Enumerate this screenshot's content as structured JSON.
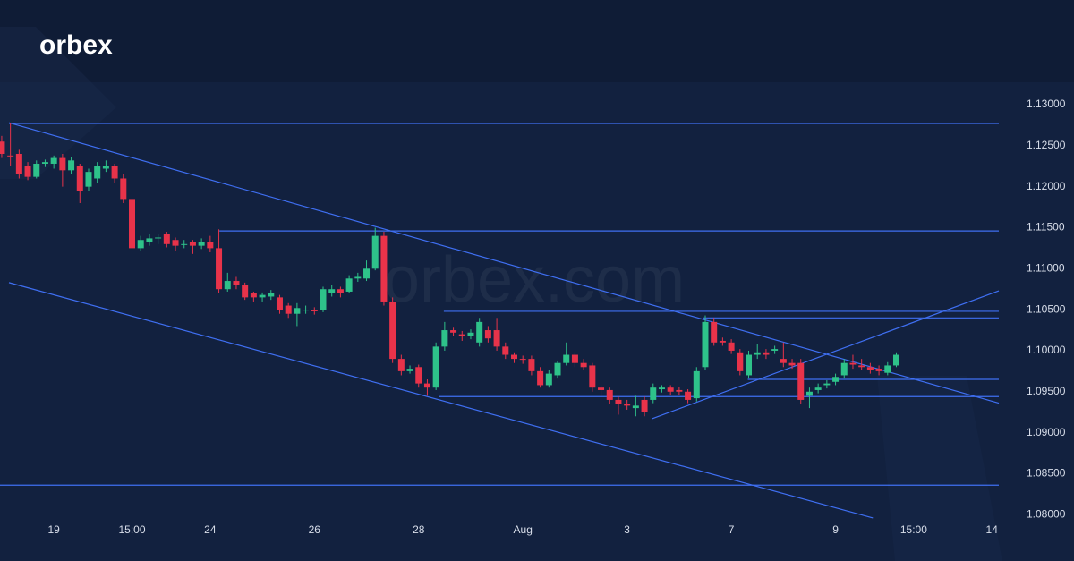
{
  "logo": "orbex",
  "watermark": "orbex.com",
  "chart_data": {
    "type": "candlestick",
    "up_color": "#2ec28a",
    "down_color": "#e8334a",
    "line_color": "#3f6ff2",
    "grid": false,
    "xlim": [
      -0.2,
      114.8
    ],
    "ylim": [
      1.0773,
      1.1324
    ],
    "xticks": [
      {
        "value": 6,
        "label": "19"
      },
      {
        "value": 15,
        "label": "15:00"
      },
      {
        "value": 24,
        "label": "24"
      },
      {
        "value": 36,
        "label": "26"
      },
      {
        "value": 48,
        "label": "28"
      },
      {
        "value": 60,
        "label": "Aug"
      },
      {
        "value": 72,
        "label": "3"
      },
      {
        "value": 84,
        "label": "7"
      },
      {
        "value": 96,
        "label": "9"
      },
      {
        "value": 105,
        "label": "15:00"
      },
      {
        "value": 114,
        "label": "14"
      }
    ],
    "yticks": [
      {
        "value": 1.13,
        "label": "1.13000"
      },
      {
        "value": 1.125,
        "label": "1.12500"
      },
      {
        "value": 1.12,
        "label": "1.12000"
      },
      {
        "value": 1.115,
        "label": "1.11500"
      },
      {
        "value": 1.11,
        "label": "1.11000"
      },
      {
        "value": 1.105,
        "label": "1.10500"
      },
      {
        "value": 1.1,
        "label": "1.10000"
      },
      {
        "value": 1.095,
        "label": "1.09500"
      },
      {
        "value": 1.09,
        "label": "1.09000"
      },
      {
        "value": 1.085,
        "label": "1.08500"
      },
      {
        "value": 1.08,
        "label": "1.08000"
      }
    ],
    "open": [
      1.1255,
      1.1238,
      1.124,
      1.1225,
      1.1212,
      1.1228,
      1.1228,
      1.1235,
      1.122,
      1.1225,
      1.12,
      1.121,
      1.1222,
      1.1225,
      1.121,
      1.1185,
      1.1125,
      1.1132,
      1.1137,
      1.1142,
      1.1135,
      1.113,
      1.1132,
      1.1128,
      1.1133,
      1.1125,
      1.1075,
      1.1085,
      1.108,
      1.107,
      1.1065,
      1.1066,
      1.1065,
      1.1055,
      1.1045,
      1.105,
      1.105,
      1.105,
      1.107,
      1.1075,
      1.1072,
      1.1088,
      1.1088,
      1.11,
      1.114,
      1.106,
      1.099,
      1.0975,
      1.098,
      1.096,
      1.0955,
      1.1005,
      1.1025,
      1.102,
      1.1018,
      1.101,
      1.1025,
      1.1025,
      1.1005,
      1.0995,
      1.099,
      1.099,
      1.0975,
      1.0958,
      1.097,
      1.0985,
      1.0995,
      1.0985,
      1.0982,
      1.0955,
      1.0952,
      1.094,
      1.0935,
      1.093,
      1.094,
      1.094,
      1.0953,
      1.0955,
      1.0952,
      1.095,
      1.0942,
      1.098,
      1.1035,
      1.1012,
      1.101,
      1.0998,
      1.097,
      1.0995,
      1.0998,
      1.1,
      1.099,
      1.0985,
      1.0985,
      1.0945,
      1.0952,
      1.0958,
      1.0962,
      1.097,
      1.0985,
      1.0982,
      1.098,
      1.0978,
      1.0973,
      1.0982
    ],
    "high": [
      1.1262,
      1.1278,
      1.1245,
      1.123,
      1.1232,
      1.1233,
      1.1238,
      1.124,
      1.1236,
      1.1228,
      1.1222,
      1.123,
      1.1232,
      1.1228,
      1.1215,
      1.1188,
      1.114,
      1.1142,
      1.1142,
      1.1145,
      1.1138,
      1.1135,
      1.1135,
      1.1137,
      1.114,
      1.1148,
      1.1095,
      1.109,
      1.1083,
      1.1072,
      1.1071,
      1.1074,
      1.1068,
      1.1058,
      1.1058,
      1.1055,
      1.1053,
      1.1078,
      1.108,
      1.1078,
      1.1092,
      1.1095,
      1.111,
      1.115,
      1.1145,
      1.1065,
      1.0995,
      1.0982,
      1.0983,
      1.0965,
      1.101,
      1.1035,
      1.1028,
      1.1024,
      1.1026,
      1.104,
      1.103,
      1.104,
      1.101,
      1.0998,
      1.0994,
      1.0994,
      1.098,
      1.0976,
      1.0988,
      1.101,
      1.0998,
      1.099,
      1.0985,
      1.0958,
      1.0955,
      1.0944,
      1.094,
      1.0945,
      1.0944,
      1.096,
      1.0958,
      1.0958,
      1.0956,
      1.0953,
      1.098,
      1.1043,
      1.104,
      1.1016,
      1.1014,
      1.1002,
      1.1,
      1.1008,
      1.1002,
      1.1006,
      1.101,
      1.099,
      1.099,
      1.0955,
      1.096,
      1.0964,
      1.0972,
      1.099,
      1.0995,
      1.099,
      1.0985,
      1.0982,
      1.0986,
      1.0998
    ],
    "low": [
      1.1235,
      1.1225,
      1.121,
      1.1208,
      1.121,
      1.1224,
      1.1222,
      1.12,
      1.1215,
      1.118,
      1.1195,
      1.1205,
      1.1218,
      1.1205,
      1.118,
      1.112,
      1.1122,
      1.1128,
      1.113,
      1.1126,
      1.1122,
      1.1125,
      1.1118,
      1.1124,
      1.112,
      1.107,
      1.1072,
      1.1075,
      1.1062,
      1.106,
      1.106,
      1.1062,
      1.1045,
      1.104,
      1.103,
      1.1045,
      1.1044,
      1.1047,
      1.1066,
      1.1065,
      1.107,
      1.1084,
      1.1085,
      1.1098,
      1.1055,
      1.0985,
      1.097,
      1.0972,
      1.0955,
      1.0945,
      1.0952,
      1.1,
      1.1018,
      1.1012,
      1.1014,
      1.1005,
      1.101,
      1.1,
      1.099,
      1.0985,
      1.0984,
      1.097,
      1.0955,
      1.0955,
      1.0966,
      1.0982,
      1.098,
      1.0976,
      1.095,
      1.0945,
      1.0935,
      1.0922,
      1.0928,
      1.092,
      1.092,
      1.0936,
      1.0949,
      1.0946,
      1.0946,
      1.0936,
      1.0938,
      1.0976,
      1.1006,
      1.1006,
      1.0996,
      1.097,
      1.0966,
      1.099,
      1.099,
      1.0996,
      1.098,
      1.0978,
      1.0935,
      1.093,
      1.0948,
      1.0954,
      1.0958,
      1.0966,
      1.0978,
      1.0976,
      1.0972,
      1.097,
      1.097,
      1.098
    ],
    "close": [
      1.124,
      1.1237,
      1.1215,
      1.1212,
      1.1228,
      1.123,
      1.1235,
      1.122,
      1.1232,
      1.1195,
      1.1218,
      1.1225,
      1.1225,
      1.121,
      1.1185,
      1.1125,
      1.1135,
      1.1137,
      1.1138,
      1.113,
      1.1128,
      1.113,
      1.1128,
      1.1133,
      1.1125,
      1.1075,
      1.1085,
      1.108,
      1.1065,
      1.1065,
      1.1068,
      1.107,
      1.105,
      1.1045,
      1.1052,
      1.105,
      1.1048,
      1.1075,
      1.1075,
      1.107,
      1.1088,
      1.109,
      1.11,
      1.114,
      1.106,
      1.099,
      1.0975,
      1.0978,
      1.096,
      1.0955,
      1.1005,
      1.1025,
      1.1022,
      1.1018,
      1.1022,
      1.1035,
      1.1015,
      1.1005,
      1.0995,
      1.099,
      1.0989,
      1.0975,
      1.0958,
      1.0972,
      1.0985,
      1.0995,
      1.0985,
      1.098,
      1.0955,
      1.0952,
      1.094,
      1.0935,
      1.0933,
      1.0933,
      1.0925,
      1.0955,
      1.0955,
      1.095,
      1.095,
      1.094,
      1.0975,
      1.1035,
      1.101,
      1.101,
      1.1,
      1.0975,
      1.0995,
      1.0998,
      1.0995,
      1.1002,
      1.0985,
      1.0982,
      1.094,
      1.095,
      1.0955,
      1.096,
      1.0968,
      1.0985,
      1.0983,
      1.098,
      1.0977,
      1.0975,
      1.0982,
      1.0995
    ],
    "lines": [
      {
        "x": [
          0.83,
          114.8
        ],
        "y": [
          1.1277,
          1.1277
        ]
      },
      {
        "x": [
          0.83,
          114.8
        ],
        "y": [
          1.1278,
          1.0936
        ]
      },
      {
        "x": [
          0.83,
          100.3
        ],
        "y": [
          1.1083,
          1.0796
        ]
      },
      {
        "x": [
          25.06,
          114.8
        ],
        "y": [
          1.1146,
          1.1146
        ]
      },
      {
        "x": [
          50.9,
          114.8
        ],
        "y": [
          1.1048,
          1.1048
        ]
      },
      {
        "x": [
          80.7,
          114.8
        ],
        "y": [
          1.104,
          1.104
        ]
      },
      {
        "x": [
          85.9,
          114.8
        ],
        "y": [
          1.0965,
          1.0965
        ]
      },
      {
        "x": [
          50.3,
          114.8
        ],
        "y": [
          1.0944,
          1.0944
        ]
      },
      {
        "x": [
          74.85,
          114.8
        ],
        "y": [
          1.0917,
          1.1073
        ]
      },
      {
        "x": [
          -0.2,
          114.8
        ],
        "y": [
          1.0836,
          1.0836
        ]
      }
    ]
  }
}
